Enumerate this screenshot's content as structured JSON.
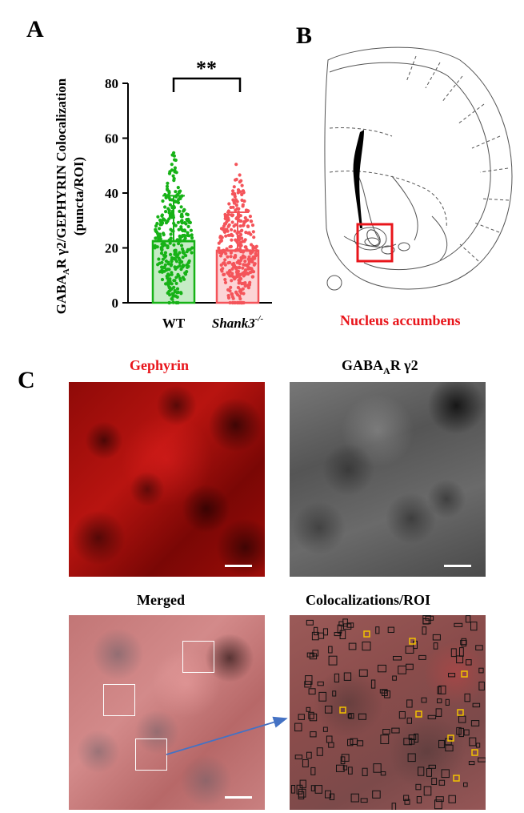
{
  "panels": {
    "a": {
      "letter": "A"
    },
    "b": {
      "letter": "B",
      "region_label": "Nucleus accumbens"
    },
    "c": {
      "letter": "C",
      "titles": {
        "gephyrin": "Gephyrin",
        "gaba_prefix": "GABA",
        "gaba_sub": "A",
        "gaba_suffix": "R γ2",
        "merged": "Merged",
        "coloc": "Colocalizations/ROI"
      }
    }
  },
  "chart_data": {
    "type": "bar",
    "ylabel_main": "GABA",
    "ylabel_sub": "A",
    "ylabel_rest": "R γ2/GEPHYRIN Colocalization",
    "ylabel_line2": "(puncta/ROI)",
    "ylim": [
      0,
      80
    ],
    "yticks": [
      "0",
      "20",
      "40",
      "60",
      "80"
    ],
    "categories": [
      "WT",
      "Shank3"
    ],
    "category_superscript": [
      "",
      "-/-"
    ],
    "values": [
      22.5,
      19
    ],
    "sd": [
      16.5,
      14
    ],
    "point_ranges": [
      [
        0,
        56
      ],
      [
        0,
        54
      ]
    ],
    "colors": [
      "#17b217",
      "#f4545a"
    ],
    "significance": "**"
  },
  "colors": {
    "accent_red": "#e8151b",
    "arrow_blue": "#4472c4",
    "box_yellow": "#f2c200"
  }
}
